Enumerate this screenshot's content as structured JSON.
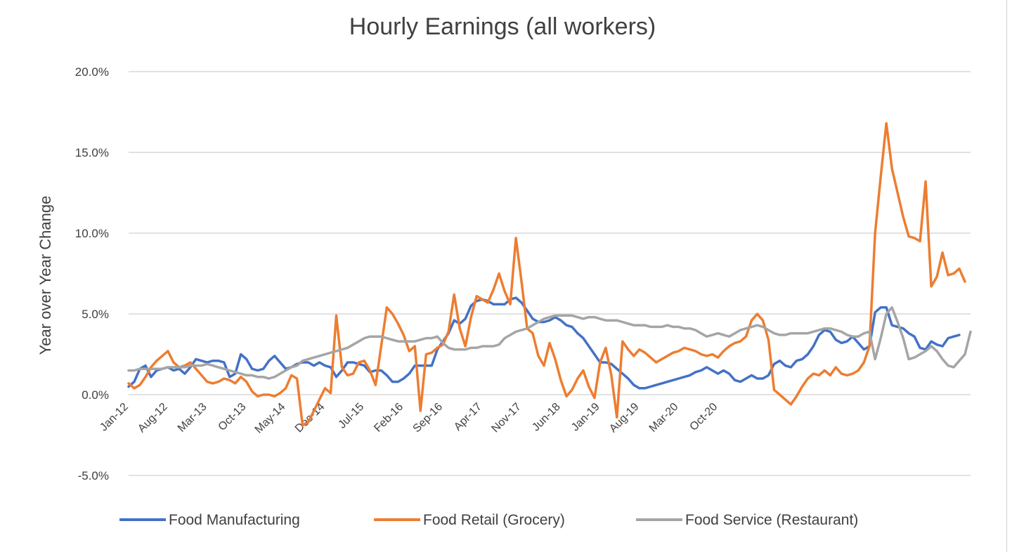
{
  "chart_data": {
    "type": "line",
    "title": "Hourly Earnings (all workers)",
    "xlabel": "",
    "ylabel": "Year over Year Change",
    "ylim": [
      -5,
      20
    ],
    "y_ticks": [
      -5,
      0,
      5,
      10,
      15,
      20
    ],
    "y_tick_labels": [
      "-5.0%",
      "0.0%",
      "5.0%",
      "10.0%",
      "15.0%",
      "20.0%"
    ],
    "x_tick_labels": [
      "Jan-12",
      "Aug-12",
      "Mar-13",
      "Oct-13",
      "May-14",
      "Dec-14",
      "Jul-15",
      "Feb-16",
      "Sep-16",
      "Apr-17",
      "Nov-17",
      "Jun-18",
      "Jan-19",
      "Aug-19",
      "Mar-20",
      "Oct-20"
    ],
    "x_start": "Jan-12",
    "grid": "horizontal",
    "legend_position": "bottom",
    "series": [
      {
        "name": "Food Manufacturing",
        "color": "#4472C4",
        "values": [
          0.5,
          0.8,
          1.6,
          1.8,
          1.1,
          1.5,
          1.6,
          1.7,
          1.5,
          1.6,
          1.3,
          1.7,
          2.2,
          2.1,
          2.0,
          2.1,
          2.1,
          2.0,
          1.1,
          1.3,
          2.5,
          2.2,
          1.6,
          1.5,
          1.6,
          2.1,
          2.4,
          2.0,
          1.6,
          1.7,
          1.9,
          2.0,
          2.0,
          1.8,
          2.0,
          1.8,
          1.7,
          1.1,
          1.5,
          2.0,
          2.0,
          1.9,
          1.8,
          1.4,
          1.5,
          1.5,
          1.2,
          0.8,
          0.8,
          1.0,
          1.3,
          1.8,
          1.8,
          1.8,
          1.8,
          2.8,
          3.3,
          3.8,
          4.6,
          4.4,
          4.7,
          5.5,
          5.8,
          5.9,
          5.8,
          5.6,
          5.6,
          5.6,
          5.9,
          6.0,
          5.7,
          5.2,
          4.7,
          4.5,
          4.5,
          4.6,
          4.8,
          4.6,
          4.3,
          4.2,
          3.8,
          3.5,
          3.0,
          2.5,
          2.0,
          2.0,
          1.9,
          1.6,
          1.3,
          1.0,
          0.6,
          0.4,
          0.4,
          0.5,
          0.6,
          0.7,
          0.8,
          0.9,
          1.0,
          1.1,
          1.2,
          1.4,
          1.5,
          1.7,
          1.5,
          1.3,
          1.5,
          1.3,
          0.9,
          0.8,
          1.0,
          1.2,
          1.0,
          1.0,
          1.2,
          1.9,
          2.1,
          1.8,
          1.7,
          2.1,
          2.2,
          2.5,
          3.0,
          3.7,
          4.0,
          3.9,
          3.4,
          3.2,
          3.3,
          3.6,
          3.2,
          2.8,
          3.0,
          5.1,
          5.4,
          5.4,
          4.3,
          4.2,
          4.1,
          3.8,
          3.6,
          2.9,
          2.8,
          3.3,
          3.1,
          3.0,
          3.5,
          3.6,
          3.7
        ]
      },
      {
        "name": "Food Retail (Grocery)",
        "color": "#ED7D31",
        "values": [
          0.7,
          0.4,
          0.6,
          1.1,
          1.7,
          2.1,
          2.4,
          2.7,
          2.0,
          1.7,
          1.8,
          2.0,
          1.6,
          1.2,
          0.8,
          0.7,
          0.8,
          1.0,
          0.9,
          0.7,
          1.1,
          0.8,
          0.2,
          -0.1,
          0.0,
          0.0,
          -0.1,
          0.1,
          0.4,
          1.2,
          1.0,
          -1.9,
          -1.7,
          -1.0,
          -0.3,
          0.4,
          0.1,
          4.9,
          1.7,
          1.2,
          1.3,
          2.0,
          2.1,
          1.5,
          0.6,
          3.0,
          5.4,
          5.0,
          4.4,
          3.7,
          2.7,
          3.0,
          -1.0,
          2.5,
          2.6,
          2.9,
          3.1,
          3.9,
          6.2,
          4.1,
          3.0,
          4.8,
          6.1,
          5.9,
          5.7,
          6.5,
          7.5,
          6.4,
          5.6,
          9.7,
          7.0,
          4.1,
          3.8,
          2.4,
          1.8,
          3.2,
          2.2,
          0.9,
          -0.1,
          0.3,
          1.0,
          1.5,
          0.5,
          -0.2,
          2.0,
          2.9,
          1.2,
          -1.4,
          3.3,
          2.8,
          2.4,
          2.8,
          2.6,
          2.3,
          2.0,
          2.2,
          2.4,
          2.6,
          2.7,
          2.9,
          2.8,
          2.7,
          2.5,
          2.4,
          2.5,
          2.3,
          2.7,
          3.0,
          3.2,
          3.3,
          3.6,
          4.6,
          5.0,
          4.6,
          3.4,
          0.3,
          0.0,
          -0.3,
          -0.6,
          -0.1,
          0.5,
          1.0,
          1.3,
          1.2,
          1.5,
          1.2,
          1.7,
          1.3,
          1.2,
          1.3,
          1.5,
          2.0,
          3.0,
          10.0,
          13.5,
          16.8,
          14.0,
          12.5,
          11.0,
          9.8,
          9.7,
          9.5,
          13.2,
          6.7,
          7.3,
          8.8,
          7.4,
          7.5,
          7.8,
          7.0
        ]
      },
      {
        "name": "Food Service (Restaurant)",
        "color": "#A5A5A5",
        "values": [
          1.5,
          1.5,
          1.6,
          1.6,
          1.6,
          1.6,
          1.6,
          1.7,
          1.7,
          1.7,
          1.7,
          1.8,
          1.8,
          1.8,
          1.9,
          1.8,
          1.7,
          1.6,
          1.5,
          1.4,
          1.3,
          1.2,
          1.2,
          1.1,
          1.1,
          1.0,
          1.1,
          1.3,
          1.5,
          1.7,
          1.8,
          2.1,
          2.2,
          2.3,
          2.4,
          2.5,
          2.6,
          2.7,
          2.8,
          2.9,
          3.1,
          3.3,
          3.5,
          3.6,
          3.6,
          3.6,
          3.5,
          3.4,
          3.3,
          3.3,
          3.3,
          3.3,
          3.4,
          3.5,
          3.5,
          3.6,
          3.2,
          2.9,
          2.8,
          2.8,
          2.8,
          2.9,
          2.9,
          3.0,
          3.0,
          3.0,
          3.1,
          3.5,
          3.7,
          3.9,
          4.0,
          4.1,
          4.3,
          4.5,
          4.7,
          4.8,
          4.9,
          4.9,
          4.9,
          4.9,
          4.8,
          4.7,
          4.8,
          4.8,
          4.7,
          4.6,
          4.6,
          4.6,
          4.5,
          4.4,
          4.3,
          4.3,
          4.3,
          4.2,
          4.2,
          4.2,
          4.3,
          4.2,
          4.2,
          4.1,
          4.1,
          4.0,
          3.8,
          3.6,
          3.7,
          3.8,
          3.7,
          3.6,
          3.8,
          4.0,
          4.1,
          4.2,
          4.3,
          4.2,
          4.0,
          3.8,
          3.7,
          3.7,
          3.8,
          3.8,
          3.8,
          3.8,
          3.9,
          4.0,
          4.1,
          4.1,
          4.0,
          3.9,
          3.7,
          3.6,
          3.6,
          3.8,
          3.9,
          2.2,
          3.5,
          5.0,
          5.4,
          4.5,
          3.5,
          2.2,
          2.3,
          2.5,
          2.7,
          3.0,
          2.7,
          2.2,
          1.8,
          1.7,
          2.1,
          2.5,
          3.9
        ]
      }
    ]
  }
}
